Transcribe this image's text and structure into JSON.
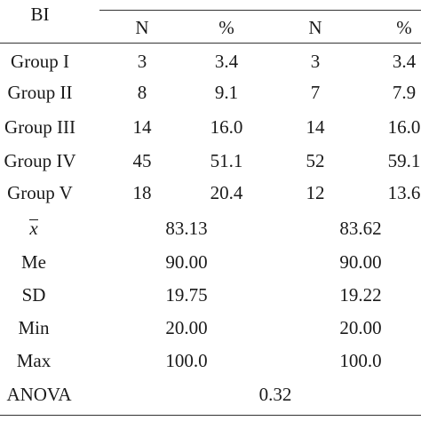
{
  "header": {
    "stub": "BI",
    "columns": [
      "N",
      "%",
      "N",
      "%"
    ]
  },
  "rows": [
    {
      "label": "Group I",
      "n1": "3",
      "p1": "3.4",
      "n2": "3",
      "p2": "3.4"
    },
    {
      "label": "Group II",
      "n1": "8",
      "p1": "9.1",
      "n2": "7",
      "p2": "7.9"
    },
    {
      "label": "Group III",
      "n1": "14",
      "p1": "16.0",
      "n2": "14",
      "p2": "16.0"
    },
    {
      "label": "Group IV",
      "n1": "45",
      "p1": "51.1",
      "n2": "52",
      "p2": "59.1"
    },
    {
      "label": "Group V",
      "n1": "18",
      "p1": "20.4",
      "n2": "12",
      "p2": "13.6"
    }
  ],
  "stats": [
    {
      "label": "x",
      "v1": "83.13",
      "v2": "83.62"
    },
    {
      "label": "Me",
      "v1": "90.00",
      "v2": "90.00"
    },
    {
      "label": "SD",
      "v1": "19.75",
      "v2": "19.22"
    },
    {
      "label": "Min",
      "v1": "20.00",
      "v2": "20.00"
    },
    {
      "label": "Max",
      "v1": "100.0",
      "v2": "100.0"
    }
  ],
  "anova": {
    "label": "ANOVA",
    "value": "0.32"
  }
}
